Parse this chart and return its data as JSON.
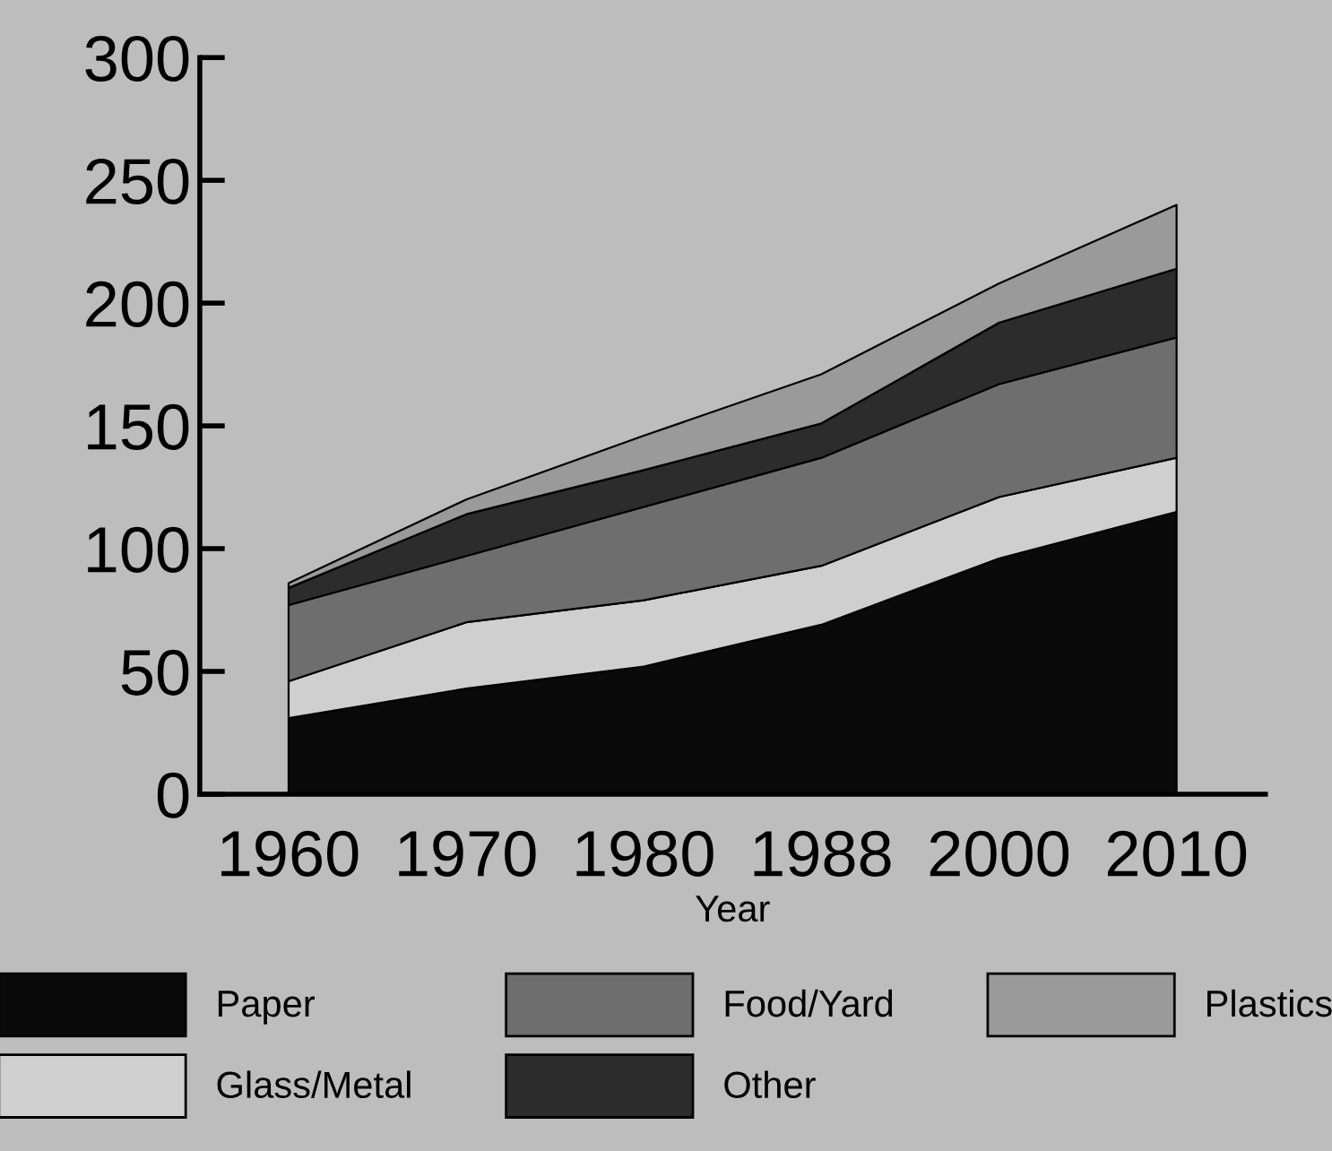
{
  "chart_data": {
    "type": "area",
    "stacked": true,
    "xlabel": "Year",
    "categories": [
      "1960",
      "1970",
      "1980",
      "1988",
      "2000",
      "2010"
    ],
    "series": [
      {
        "name": "Paper",
        "color": "#0a0a0a",
        "values": [
          31,
          43,
          52,
          69,
          96,
          115
        ]
      },
      {
        "name": "Glass/Metal",
        "color": "#cfcfcf",
        "values": [
          15,
          27,
          27,
          24,
          25,
          22
        ]
      },
      {
        "name": "Food/Yard",
        "color": "#6e6e6e",
        "values": [
          31,
          27,
          38,
          44,
          46,
          49
        ]
      },
      {
        "name": "Other",
        "color": "#2c2c2c",
        "values": [
          7,
          17,
          15,
          14,
          25,
          28
        ]
      },
      {
        "name": "Plastics",
        "color": "#9a9a9a",
        "values": [
          2,
          6,
          14,
          20,
          16,
          26
        ]
      }
    ],
    "ylim": [
      0,
      300
    ],
    "yticks": [
      0,
      50,
      100,
      150,
      200,
      250,
      300
    ],
    "grid": false,
    "legend": "bottom"
  }
}
